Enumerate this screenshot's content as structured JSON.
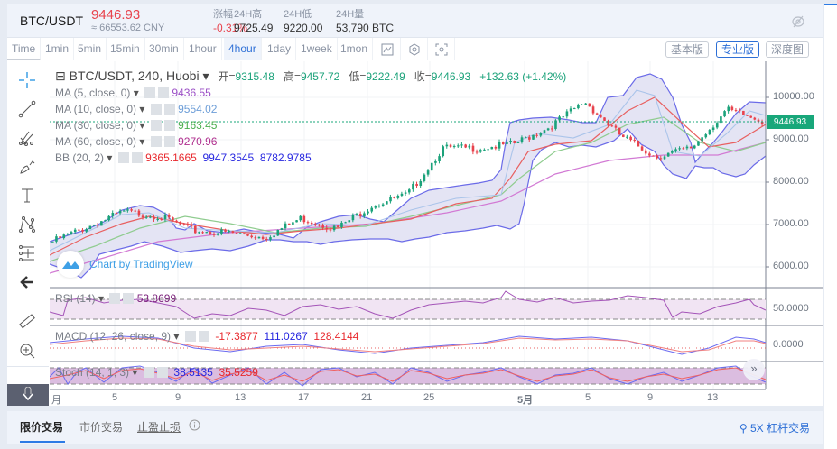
{
  "header": {
    "pair": "BTC/USDT",
    "price": "9446.93",
    "cny": "≈ 66553.62 CNY",
    "stats": [
      {
        "label": "涨幅",
        "value": "-0.31%",
        "negative": true
      },
      {
        "label": "24H高",
        "value": "9725.49",
        "negative": false
      },
      {
        "label": "24H低",
        "value": "9220.00",
        "negative": false
      },
      {
        "label": "24H量",
        "value": "53,790 BTC",
        "negative": false
      }
    ],
    "eye_icon": "eye-off-icon"
  },
  "toolbar": {
    "timeframes": [
      "Time",
      "1min",
      "5min",
      "15min",
      "30min",
      "1hour",
      "4hour",
      "1day",
      "1week",
      "1mon"
    ],
    "active_timeframe": "4hour",
    "icons": [
      "indicator-icon",
      "settings-icon",
      "fullscreen-icon"
    ],
    "versions": [
      "基本版",
      "专业版",
      "深度图"
    ],
    "active_version": "专业版"
  },
  "left_tools": [
    "crosshair-icon",
    "trend-line-icon",
    "pitchfork-icon",
    "brush-icon",
    "text-icon",
    "pattern-icon",
    "measure-lines-icon",
    "back-arrow-icon",
    "ruler-icon",
    "zoom-in-icon",
    "collapse-icon"
  ],
  "legend": {
    "main": "BTC/USDT, 240, Huobi",
    "ohlc": [
      {
        "k": "开=",
        "v": "9315.48"
      },
      {
        "k": "高=",
        "v": "9457.72"
      },
      {
        "k": "低=",
        "v": "9222.49"
      },
      {
        "k": "收=",
        "v": "9446.93"
      }
    ],
    "change": "+132.63 (+1.42%)",
    "studies": [
      {
        "name": "MA (5, close, 0)",
        "values": [
          "9436.55"
        ],
        "colors": [
          "#9b4fc6"
        ]
      },
      {
        "name": "MA (10, close, 0)",
        "values": [
          "9554.02"
        ],
        "colors": [
          "#6d9ed8"
        ]
      },
      {
        "name": "MA (30, close, 0)",
        "values": [
          "9163.45"
        ],
        "colors": [
          "#4caf50"
        ]
      },
      {
        "name": "MA (60, close, 0)",
        "values": [
          "9270.96"
        ],
        "colors": [
          "#b0308f"
        ]
      },
      {
        "name": "BB (20, 2)",
        "values": [
          "9365.1665",
          "9947.3545",
          "8782.9785"
        ],
        "colors": [
          "#e8282d",
          "#2727e0",
          "#2727e0"
        ]
      }
    ]
  },
  "indicators": {
    "rsi": {
      "name": "RSI (14)",
      "values": [
        "53.8699"
      ],
      "colors": [
        "#7a1f7a"
      ]
    },
    "macd": {
      "name": "MACD (12, 26, close, 9)",
      "values": [
        "-17.3877",
        "111.0267",
        "128.4144"
      ],
      "colors": [
        "#e8282d",
        "#2727e0",
        "#e8282d"
      ]
    },
    "stoch": {
      "name": "Stoch (14, 1, 3)",
      "values": [
        "38.5135",
        "35.5259"
      ],
      "colors": [
        "#2727e0",
        "#e8282d"
      ]
    }
  },
  "price_axis": [
    "10000.00",
    "9000.00",
    "8000.00",
    "7000.00",
    "6000.00"
  ],
  "current_price_tag": "9446.93",
  "rsi_axis": "50.0000",
  "macd_axis": "0.0000",
  "date_axis": [
    "月",
    "5",
    "9",
    "13",
    "17",
    "21",
    "25",
    "5月",
    "5",
    "9",
    "13"
  ],
  "watermark": "Chart by TradingView",
  "colors": {
    "up": "#1ba27a",
    "down": "#e8434d",
    "accent": "#2d6fd6",
    "bb_fill": "#e4e4f4"
  },
  "bottom_tabs": {
    "items": [
      "限价交易",
      "市价交易",
      "止盈止损"
    ],
    "active": "限价交易",
    "info_icon": "info-icon",
    "leverage": "5X 杠杆交易"
  },
  "chart_data": {
    "type": "candlestick",
    "title": "BTC/USDT, 240, Huobi",
    "x_ticks": [
      "Apr",
      "5",
      "9",
      "13",
      "17",
      "21",
      "25",
      "May",
      "5",
      "9",
      "13"
    ],
    "ylim": [
      5600,
      10600
    ],
    "y_ticks": [
      6000,
      7000,
      8000,
      9000,
      10000
    ],
    "approx_close_path": [
      {
        "x": "Apr 1",
        "y": 6600
      },
      {
        "x": "Apr 3",
        "y": 6950
      },
      {
        "x": "Apr 6",
        "y": 7300
      },
      {
        "x": "Apr 9",
        "y": 7200
      },
      {
        "x": "Apr 11",
        "y": 6850
      },
      {
        "x": "Apr 14",
        "y": 6800
      },
      {
        "x": "Apr 16",
        "y": 6700
      },
      {
        "x": "Apr 18",
        "y": 7150
      },
      {
        "x": "Apr 21",
        "y": 6900
      },
      {
        "x": "Apr 23",
        "y": 7450
      },
      {
        "x": "Apr 26",
        "y": 7700
      },
      {
        "x": "Apr 29",
        "y": 8800
      },
      {
        "x": "May 1",
        "y": 8800
      },
      {
        "x": "May 4",
        "y": 8900
      },
      {
        "x": "May 7",
        "y": 9300
      },
      {
        "x": "May 8",
        "y": 9900
      },
      {
        "x": "May 10",
        "y": 9100
      },
      {
        "x": "May 11",
        "y": 8600
      },
      {
        "x": "May 13",
        "y": 8800
      },
      {
        "x": "May 15",
        "y": 9700
      },
      {
        "x": "May 17",
        "y": 9446.93
      }
    ],
    "last": {
      "open": 9315.48,
      "high": 9457.72,
      "low": 9222.49,
      "close": 9446.93,
      "change": 132.63,
      "change_pct": 1.42
    }
  }
}
